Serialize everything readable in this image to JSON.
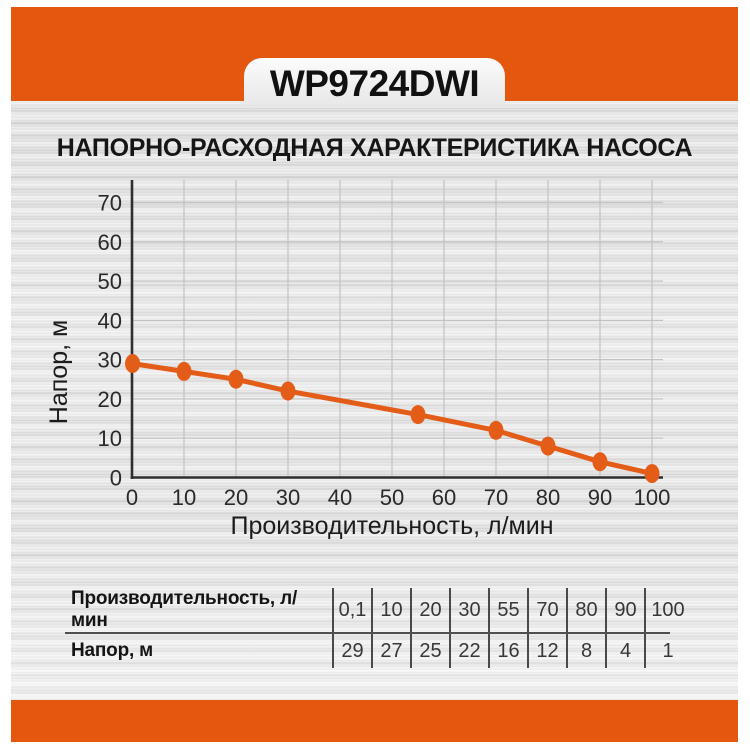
{
  "header": {
    "model": "WP9724DWI"
  },
  "page_title": "НАПОРНО-РАСХОДНАЯ ХАРАКТЕРИСТИКА НАСОСА",
  "colors": {
    "accent_orange": "#e4570f",
    "curve_orange": "#e35d18",
    "grid_line": "#c2c2c2",
    "axis_line": "#2f2f2f",
    "tick_text": "#2a2a2a",
    "label_text": "#1c1c1c"
  },
  "chart_data": {
    "type": "line",
    "title": "НАПОРНО-РАСХОДНАЯ ХАРАКТЕРИСТИКА НАСОСА",
    "xlabel": "Производительность, л/мин",
    "ylabel": "Напор, м",
    "x": [
      0.1,
      10,
      20,
      30,
      55,
      70,
      80,
      90,
      100
    ],
    "y": [
      29,
      27,
      25,
      22,
      16,
      12,
      8,
      4,
      1
    ],
    "xticks": [
      0,
      10,
      20,
      30,
      40,
      50,
      60,
      70,
      80,
      90,
      100
    ],
    "yticks": [
      0,
      10,
      20,
      30,
      40,
      50,
      60,
      70
    ],
    "xlim": [
      0,
      102
    ],
    "ylim": [
      0,
      76
    ],
    "grid": true,
    "legend": false,
    "marker": "ellipse"
  },
  "table": {
    "rows": [
      {
        "label": "Производительность, л/мин",
        "values": [
          "0,1",
          "10",
          "20",
          "30",
          "55",
          "70",
          "80",
          "90",
          "100"
        ]
      },
      {
        "label": "Напор, м",
        "values": [
          "29",
          "27",
          "25",
          "22",
          "16",
          "12",
          "8",
          "4",
          "1"
        ]
      }
    ]
  }
}
